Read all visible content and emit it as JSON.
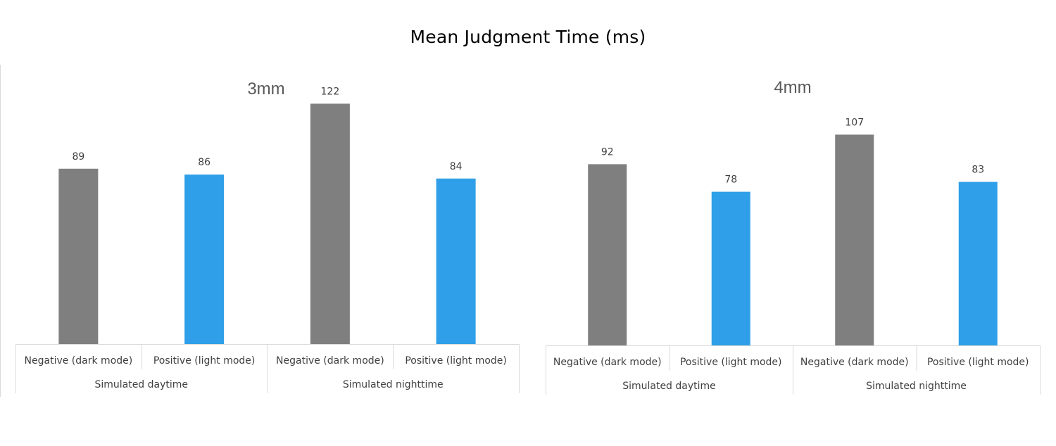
{
  "title": "Mean Judgment Time (ms)",
  "colors": {
    "negative": "#7f7f7f",
    "positive": "#2e9fe8",
    "axis": "#d9d9d9"
  },
  "chart_data": [
    {
      "type": "bar",
      "title": "3mm",
      "groups": [
        "Simulated daytime",
        "Simulated nighttime"
      ],
      "categories": [
        "Negative (dark mode)",
        "Positive (light mode)",
        "Negative (dark mode)",
        "Positive (light mode)"
      ],
      "values": [
        89,
        86,
        122,
        84
      ],
      "bar_colors": [
        "negative",
        "positive",
        "negative",
        "positive"
      ],
      "ylim": [
        0,
        130
      ],
      "grid": false,
      "legend": "none"
    },
    {
      "type": "bar",
      "title": "4mm",
      "groups": [
        "Simulated daytime",
        "Simulated nighttime"
      ],
      "categories": [
        "Negative (dark mode)",
        "Positive (light mode)",
        "Negative (dark mode)",
        "Positive (light mode)"
      ],
      "values": [
        92,
        78,
        107,
        83
      ],
      "bar_colors": [
        "negative",
        "positive",
        "negative",
        "positive"
      ],
      "ylim": [
        0,
        130
      ],
      "grid": false,
      "legend": "none"
    }
  ]
}
